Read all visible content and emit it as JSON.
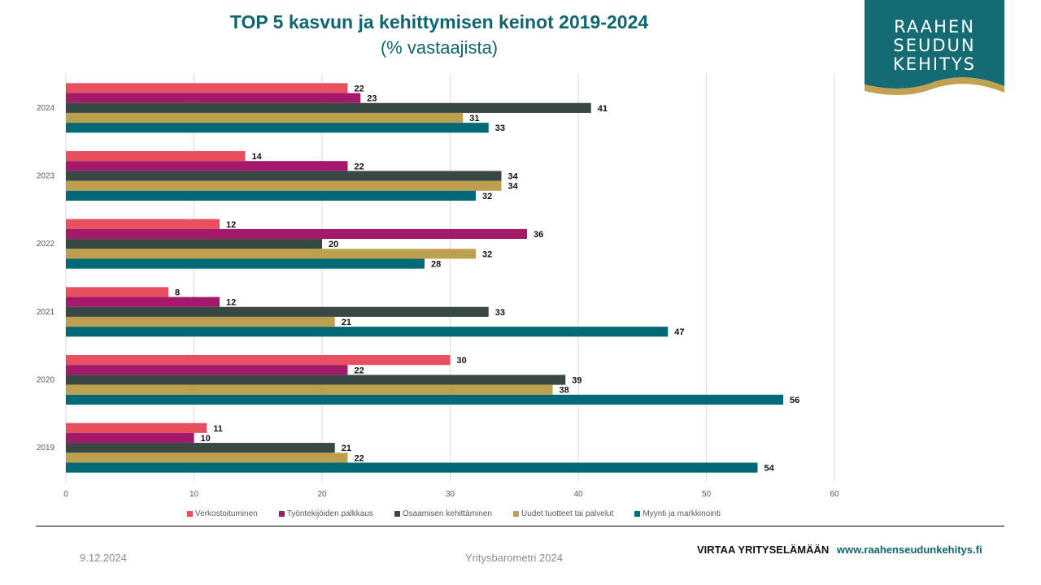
{
  "header": {
    "title": "TOP 5 kasvun ja kehittymisen keinot 2019-2024",
    "subtitle": "(% vastaajista)"
  },
  "logo": {
    "lines": [
      "RAAHEN",
      "SEUDUN",
      "KEHITYS"
    ],
    "bg_color": "#146b74",
    "wave_color": "#c2a152"
  },
  "chart_data": {
    "type": "bar",
    "orientation": "horizontal",
    "title": "TOP 5 kasvun ja kehittymisen keinot 2019-2024",
    "subtitle": "(% vastaajista)",
    "xlabel": "",
    "ylabel": "",
    "categories": [
      "2024",
      "2023",
      "2022",
      "2021",
      "2020",
      "2019"
    ],
    "xlim": [
      0,
      60
    ],
    "xticks": [
      0,
      10,
      20,
      30,
      40,
      50,
      60
    ],
    "grid": true,
    "legend_position": "bottom",
    "series": [
      {
        "name": "Verkostoituminen",
        "color": "#e8505f",
        "values": [
          22,
          14,
          12,
          8,
          30,
          11
        ]
      },
      {
        "name": "Työntekijöiden palkkaus",
        "color": "#a31a6b",
        "values": [
          23,
          22,
          36,
          12,
          22,
          10
        ]
      },
      {
        "name": "Osaamisen kehittäminen",
        "color": "#384845",
        "values": [
          41,
          34,
          20,
          33,
          39,
          21
        ]
      },
      {
        "name": "Uudet tuotteet tai palvelut",
        "color": "#bd9f50",
        "values": [
          31,
          34,
          32,
          21,
          38,
          22
        ]
      },
      {
        "name": "Myynti ja markkinointi",
        "color": "#006976",
        "values": [
          33,
          32,
          28,
          47,
          56,
          54
        ]
      }
    ]
  },
  "footer": {
    "date": "9.12.2024",
    "center": "Yritysbarometri 2024",
    "slogan": "VIRTAA YRITYSELÄMÄÄN",
    "url": "www.raahenseudunkehitys.fi"
  }
}
